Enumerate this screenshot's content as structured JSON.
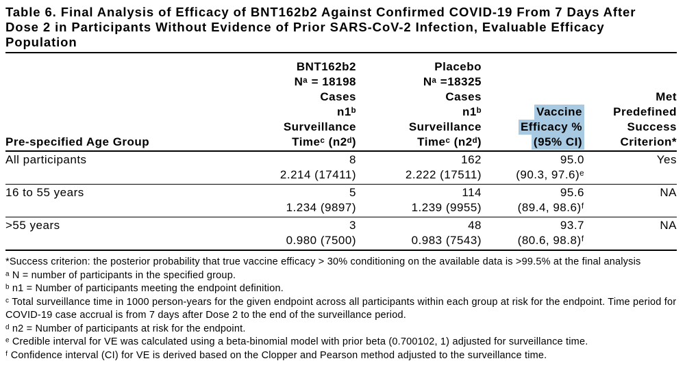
{
  "title": "Table 6. Final Analysis of Efficacy of BNT162b2 Against Confirmed COVID-19 From 7 Days After Dose 2 in Participants Without Evidence of Prior SARS-CoV-2 Infection, Evaluable Efficacy Population",
  "table": {
    "highlight_color": "#a7c9e2",
    "row_header": "Pre-specified Age Group",
    "col_headers": {
      "bnt": [
        "BNT162b2",
        "Nᵃ = 18198",
        "Cases",
        "n1ᵇ",
        "Surveillance",
        "Timeᶜ (n2ᵈ)"
      ],
      "placebo": [
        "Placebo",
        "Nᵃ =18325",
        "Cases",
        "n1ᵇ",
        "Surveillance",
        "Timeᶜ (n2ᵈ)"
      ],
      "ve": [
        "Vaccine",
        "Efficacy %",
        "(95% CI)"
      ],
      "met": [
        "Met",
        "Predefined",
        "Success",
        "Criterion*"
      ]
    },
    "rows": [
      {
        "group": "All participants",
        "bnt_cases": "8",
        "bnt_surv": "2.214 (17411)",
        "pla_cases": "162",
        "pla_surv": "2.222 (17511)",
        "ve": "95.0",
        "ci": "(90.3, 97.6)ᵉ",
        "met": "Yes"
      },
      {
        "group": "16 to 55 years",
        "bnt_cases": "5",
        "bnt_surv": "1.234 (9897)",
        "pla_cases": "114",
        "pla_surv": "1.239 (9955)",
        "ve": "95.6",
        "ci": "(89.4, 98.6)ᶠ",
        "met": "NA"
      },
      {
        "group": ">55 years",
        "bnt_cases": "3",
        "bnt_surv": "0.980 (7500)",
        "pla_cases": "48",
        "pla_surv": "0.983 (7543)",
        "ve": "93.7",
        "ci": "(80.6, 98.8)ᶠ",
        "met": "NA"
      }
    ]
  },
  "footnotes": [
    "*Success criterion: the posterior probability that true vaccine efficacy > 30% conditioning on the available data is >99.5% at the final analysis",
    "ᵃ N = number of participants in the specified group.",
    "ᵇ n1 = Number of participants meeting the endpoint definition.",
    "ᶜ Total surveillance time in 1000 person-years for the given endpoint across all participants within each group at risk for the endpoint. Time period for COVID-19 case accrual is from 7 days after Dose 2 to the end of the surveillance period.",
    "ᵈ n2 = Number of participants at risk for the endpoint.",
    "ᵉ Credible interval for VE was calculated using a beta-binomial model with prior beta (0.700102, 1) adjusted for surveillance time.",
    "ᶠ Confidence interval (CI) for VE is derived based on the Clopper and Pearson method adjusted to the surveillance time."
  ]
}
